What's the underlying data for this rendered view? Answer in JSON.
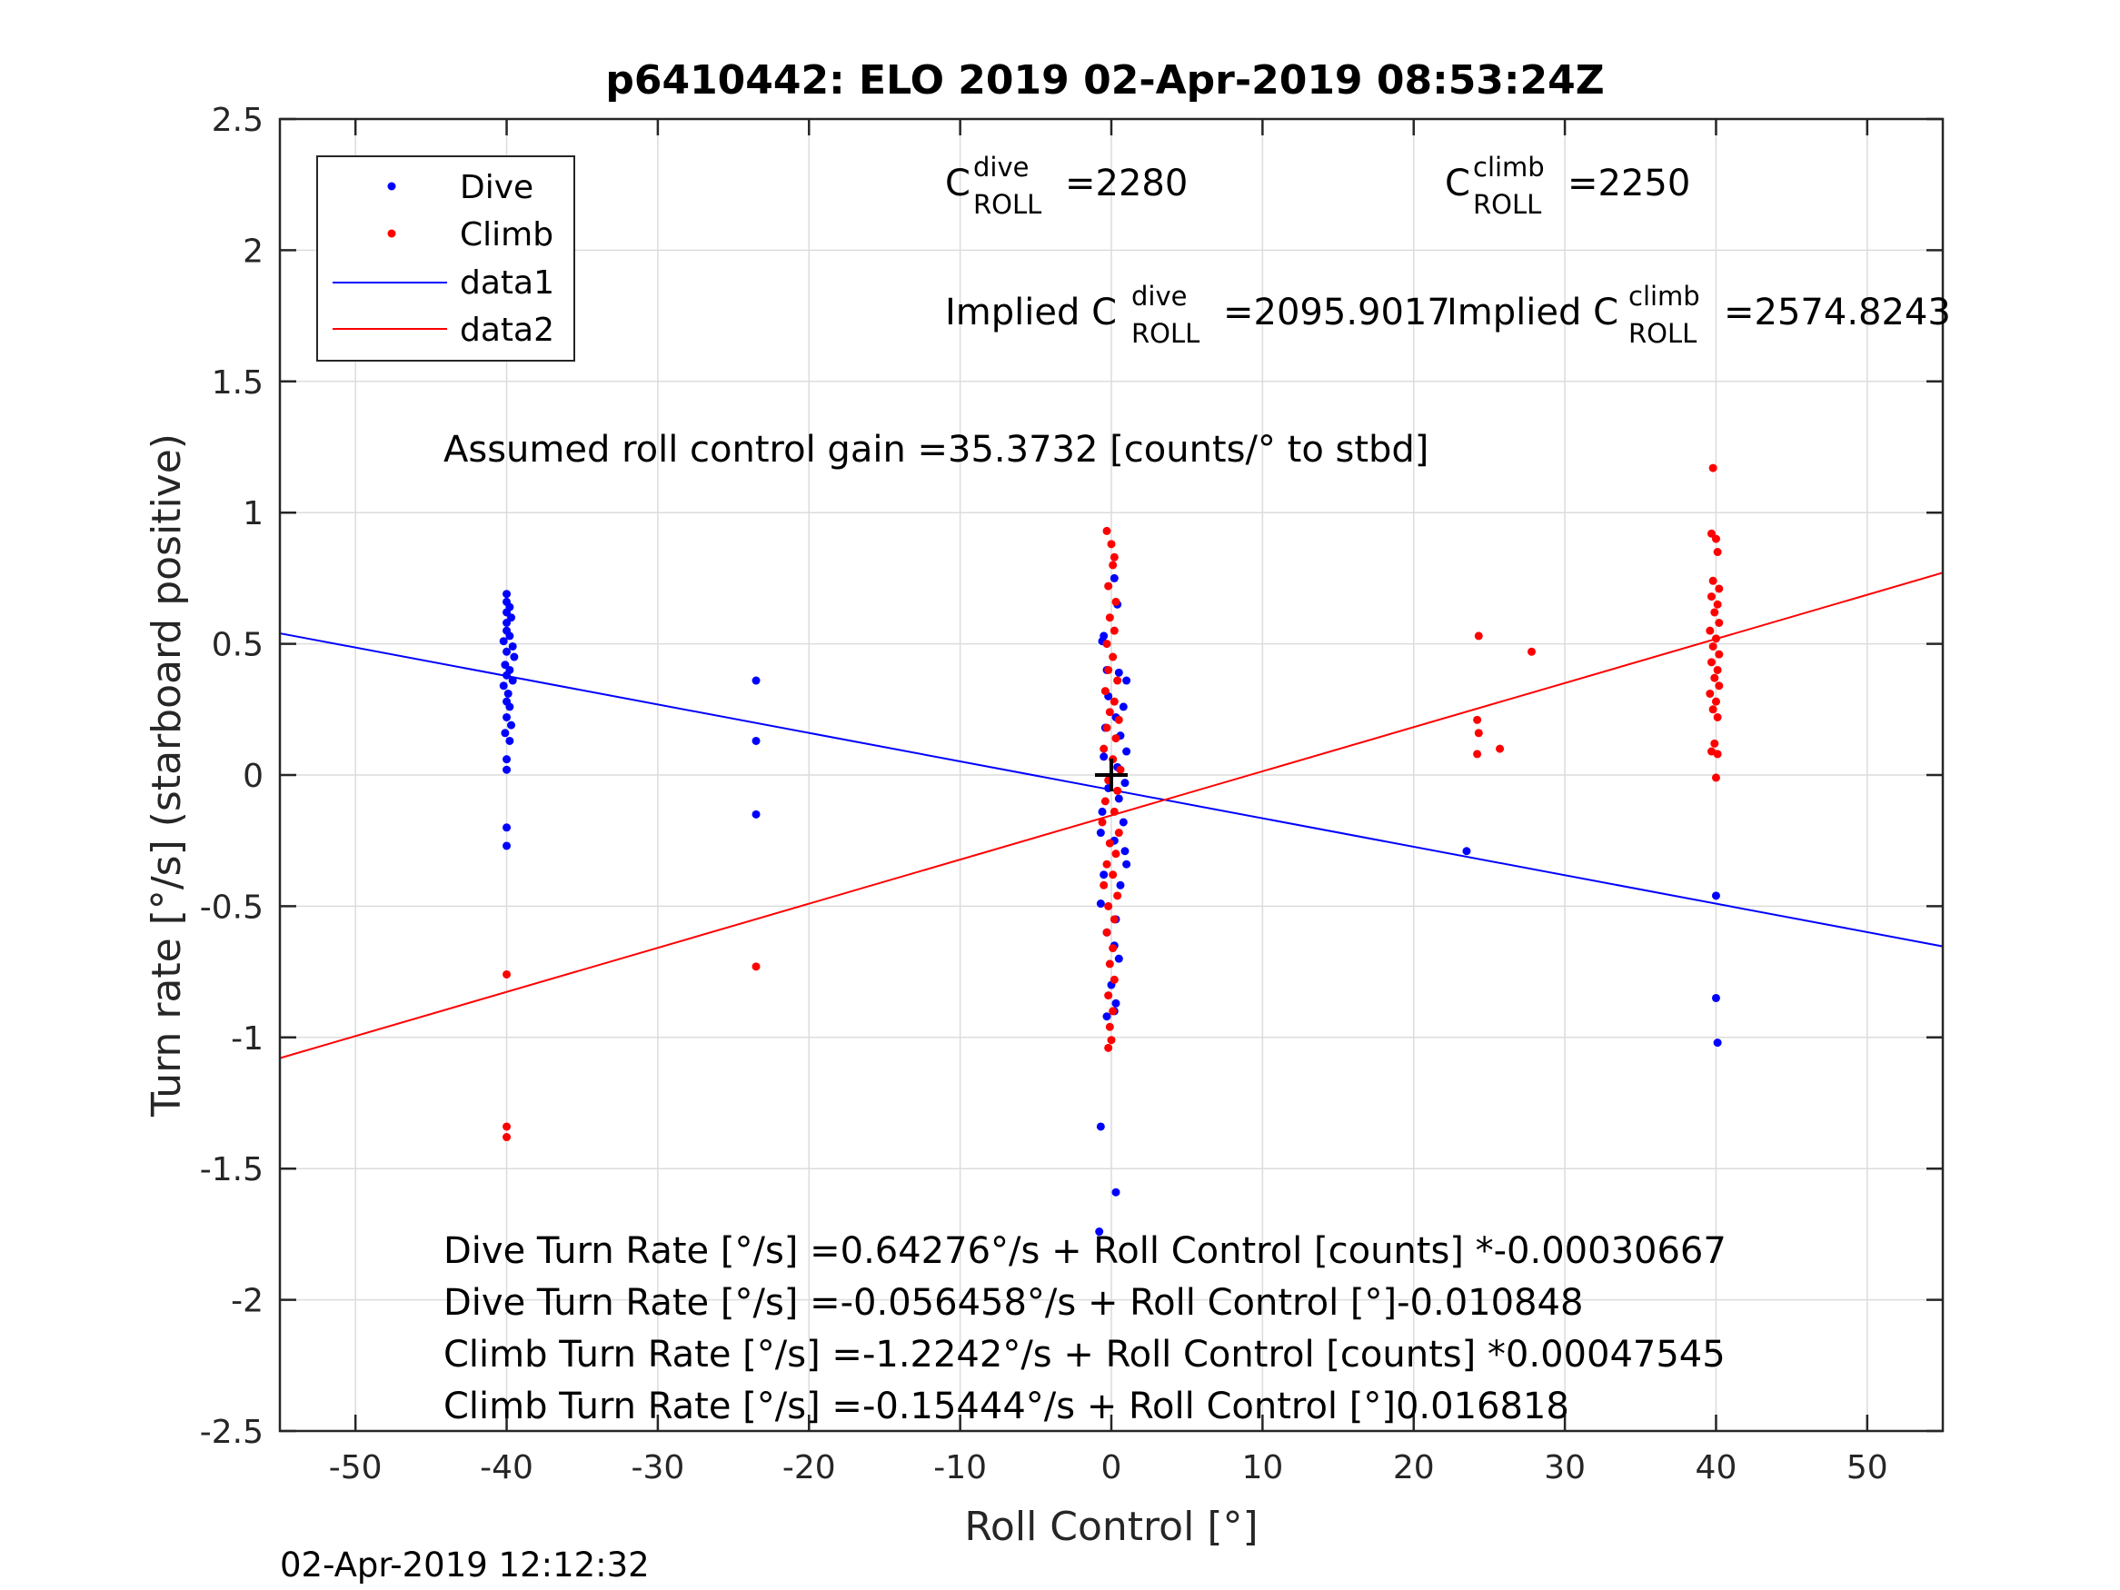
{
  "title": "p6410442: ELO 2019 02-Apr-2019 08:53:24Z",
  "timestamp": "02-Apr-2019 12:12:32",
  "colors": {
    "dive": "#0000ff",
    "climb": "#ff0000",
    "grid": "#dcdcdc",
    "axis": "#262626",
    "marker": "#000000"
  },
  "coefficients": {
    "dive_label_base": "C",
    "dive_label_sup": "dive",
    "dive_label_sub": "ROLL",
    "dive_value": "=2280",
    "climb_label_base": "C",
    "climb_label_sup": "climb",
    "climb_label_sub": "ROLL",
    "climb_value": "=2250",
    "implied_dive_prefix": "Implied C",
    "implied_dive_sup": "dive",
    "implied_dive_sub": "ROLL",
    "implied_dive_value": "=2095.9017",
    "implied_climb_prefix": "Implied C",
    "implied_climb_sup": "climb",
    "implied_climb_sub": "ROLL",
    "implied_climb_value": "=2574.8243"
  },
  "annotations": {
    "gain": "Assumed roll control gain =35.3732 [counts/° to stbd]",
    "fit_lines": [
      "Dive Turn Rate [°/s] =0.64276°/s + Roll Control [counts] *-0.00030667",
      "Dive Turn Rate [°/s] =-0.056458°/s + Roll Control [°]-0.010848",
      "Climb Turn Rate [°/s] =-1.2242°/s + Roll Control [counts] *0.00047545",
      "Climb Turn Rate [°/s] =-0.15444°/s + Roll Control [°]0.016818"
    ]
  },
  "chart_data": {
    "type": "scatter",
    "title": "p6410442: ELO 2019 02-Apr-2019 08:53:24Z",
    "xlabel": "Roll Control [°]",
    "ylabel": "Turn rate [°/s] (starboard positive)",
    "xlim": [
      -55,
      55
    ],
    "ylim": [
      -2.5,
      2.5
    ],
    "xticks": [
      -50,
      -40,
      -30,
      -20,
      -10,
      0,
      10,
      20,
      30,
      40,
      50
    ],
    "yticks": [
      -2.5,
      -2,
      -1.5,
      -1,
      -0.5,
      0,
      0.5,
      1,
      1.5,
      2,
      2.5
    ],
    "xtick_labels": [
      "-50",
      "-40",
      "-30",
      "-20",
      "-10",
      "0",
      "10",
      "20",
      "30",
      "40",
      "50"
    ],
    "ytick_labels": [
      "-2.5",
      "-2",
      "-1.5",
      "-1",
      "-0.5",
      "0",
      "0.5",
      "1",
      "1.5",
      "2",
      "2.5"
    ],
    "grid": true,
    "legend_position": "top-left",
    "series": [
      {
        "name": "Dive",
        "kind": "points",
        "color": "#0000ff",
        "points": [
          [
            -40,
            0.69
          ],
          [
            -40,
            0.66
          ],
          [
            -39.8,
            0.64
          ],
          [
            -40,
            0.62
          ],
          [
            -39.7,
            0.6
          ],
          [
            -40,
            0.58
          ],
          [
            -40,
            0.55
          ],
          [
            -39.8,
            0.53
          ],
          [
            -40.2,
            0.51
          ],
          [
            -39.6,
            0.49
          ],
          [
            -40,
            0.47
          ],
          [
            -39.5,
            0.45
          ],
          [
            -40.1,
            0.42
          ],
          [
            -39.8,
            0.4
          ],
          [
            -40,
            0.38
          ],
          [
            -39.6,
            0.36
          ],
          [
            -40.2,
            0.34
          ],
          [
            -39.9,
            0.31
          ],
          [
            -40,
            0.28
          ],
          [
            -39.8,
            0.26
          ],
          [
            -40,
            0.22
          ],
          [
            -39.7,
            0.19
          ],
          [
            -40.1,
            0.16
          ],
          [
            -39.8,
            0.13
          ],
          [
            -40,
            0.06
          ],
          [
            -40,
            0.02
          ],
          [
            -40,
            -0.2
          ],
          [
            -40,
            -0.27
          ],
          [
            -23.5,
            0.36
          ],
          [
            -23.5,
            0.13
          ],
          [
            -23.5,
            -0.15
          ],
          [
            -0.5,
            0.53
          ],
          [
            -0.6,
            0.51
          ],
          [
            0.2,
            0.75
          ],
          [
            0.4,
            0.65
          ],
          [
            -0.3,
            0.4
          ],
          [
            0.5,
            0.39
          ],
          [
            1,
            0.36
          ],
          [
            -0.2,
            0.3
          ],
          [
            0.8,
            0.26
          ],
          [
            0.3,
            0.22
          ],
          [
            -0.4,
            0.18
          ],
          [
            0.6,
            0.15
          ],
          [
            1,
            0.09
          ],
          [
            -0.5,
            0.07
          ],
          [
            0.4,
            0.03
          ],
          [
            0.9,
            -0.03
          ],
          [
            -0.2,
            -0.05
          ],
          [
            0.5,
            -0.09
          ],
          [
            -0.6,
            -0.14
          ],
          [
            0.8,
            -0.18
          ],
          [
            -0.7,
            -0.22
          ],
          [
            0.2,
            -0.25
          ],
          [
            0.9,
            -0.29
          ],
          [
            1,
            -0.34
          ],
          [
            -0.5,
            -0.38
          ],
          [
            0.6,
            -0.42
          ],
          [
            -0.7,
            -0.49
          ],
          [
            0.3,
            -0.55
          ],
          [
            -0.3,
            -0.6
          ],
          [
            0.2,
            -0.65
          ],
          [
            0.5,
            -0.7
          ],
          [
            0,
            -0.8
          ],
          [
            0.3,
            -0.87
          ],
          [
            0.2,
            -0.9
          ],
          [
            -0.3,
            -0.92
          ],
          [
            -0.7,
            -1.34
          ],
          [
            -0.8,
            -1.74
          ],
          [
            0.3,
            -1.59
          ],
          [
            23.5,
            -0.29
          ],
          [
            40,
            -0.46
          ],
          [
            40,
            -0.85
          ],
          [
            40.1,
            -1.02
          ]
        ]
      },
      {
        "name": "Climb",
        "kind": "points",
        "color": "#ff0000",
        "points": [
          [
            -40,
            -0.76
          ],
          [
            -40,
            -1.34
          ],
          [
            -40,
            -1.38
          ],
          [
            -23.5,
            -0.73
          ],
          [
            -0.3,
            0.93
          ],
          [
            0,
            0.88
          ],
          [
            0.2,
            0.83
          ],
          [
            0.1,
            0.8
          ],
          [
            -0.2,
            0.72
          ],
          [
            0.3,
            0.66
          ],
          [
            -0.1,
            0.6
          ],
          [
            0.2,
            0.55
          ],
          [
            -0.3,
            0.5
          ],
          [
            0.1,
            0.45
          ],
          [
            -0.2,
            0.4
          ],
          [
            0.4,
            0.36
          ],
          [
            -0.4,
            0.32
          ],
          [
            0.2,
            0.28
          ],
          [
            -0.1,
            0.24
          ],
          [
            0.5,
            0.21
          ],
          [
            -0.3,
            0.18
          ],
          [
            0.3,
            0.14
          ],
          [
            -0.5,
            0.1
          ],
          [
            0.1,
            0.06
          ],
          [
            0.6,
            0.02
          ],
          [
            -0.2,
            -0.02
          ],
          [
            0.4,
            -0.06
          ],
          [
            -0.4,
            -0.1
          ],
          [
            0.2,
            -0.14
          ],
          [
            -0.6,
            -0.18
          ],
          [
            0.5,
            -0.22
          ],
          [
            -0.1,
            -0.26
          ],
          [
            0.3,
            -0.3
          ],
          [
            -0.3,
            -0.34
          ],
          [
            0.1,
            -0.38
          ],
          [
            -0.5,
            -0.42
          ],
          [
            0.4,
            -0.46
          ],
          [
            -0.2,
            -0.5
          ],
          [
            0.2,
            -0.55
          ],
          [
            -0.3,
            -0.6
          ],
          [
            0.1,
            -0.66
          ],
          [
            -0.1,
            -0.72
          ],
          [
            0.2,
            -0.78
          ],
          [
            -0.2,
            -0.84
          ],
          [
            0.1,
            -0.9
          ],
          [
            -0.1,
            -0.96
          ],
          [
            0,
            -1.01
          ],
          [
            -0.2,
            -1.04
          ],
          [
            24.3,
            0.53
          ],
          [
            27.8,
            0.47
          ],
          [
            24.2,
            0.21
          ],
          [
            24.3,
            0.16
          ],
          [
            25.7,
            0.1
          ],
          [
            24.2,
            0.08
          ],
          [
            39.8,
            1.17
          ],
          [
            39.7,
            0.92
          ],
          [
            40,
            0.9
          ],
          [
            40.1,
            0.85
          ],
          [
            39.8,
            0.74
          ],
          [
            40.2,
            0.71
          ],
          [
            39.7,
            0.68
          ],
          [
            40.1,
            0.65
          ],
          [
            39.9,
            0.62
          ],
          [
            40.2,
            0.58
          ],
          [
            39.6,
            0.55
          ],
          [
            40,
            0.52
          ],
          [
            39.8,
            0.49
          ],
          [
            40.2,
            0.46
          ],
          [
            39.7,
            0.43
          ],
          [
            40.1,
            0.4
          ],
          [
            39.9,
            0.37
          ],
          [
            40.2,
            0.34
          ],
          [
            39.6,
            0.31
          ],
          [
            40,
            0.28
          ],
          [
            39.8,
            0.25
          ],
          [
            40.1,
            0.22
          ],
          [
            39.9,
            0.12
          ],
          [
            39.7,
            0.09
          ],
          [
            40.1,
            0.08
          ],
          [
            40,
            -0.01
          ]
        ]
      },
      {
        "name": "data1",
        "kind": "line",
        "color": "#0000ff",
        "x": [
          -55,
          55
        ],
        "y": [
          0.54,
          -0.653
        ]
      },
      {
        "name": "data2",
        "kind": "line",
        "color": "#ff0000",
        "x": [
          -55,
          55
        ],
        "y": [
          -1.079,
          0.771
        ]
      }
    ],
    "marker": {
      "x": 0,
      "y": 0,
      "shape": "+"
    }
  }
}
